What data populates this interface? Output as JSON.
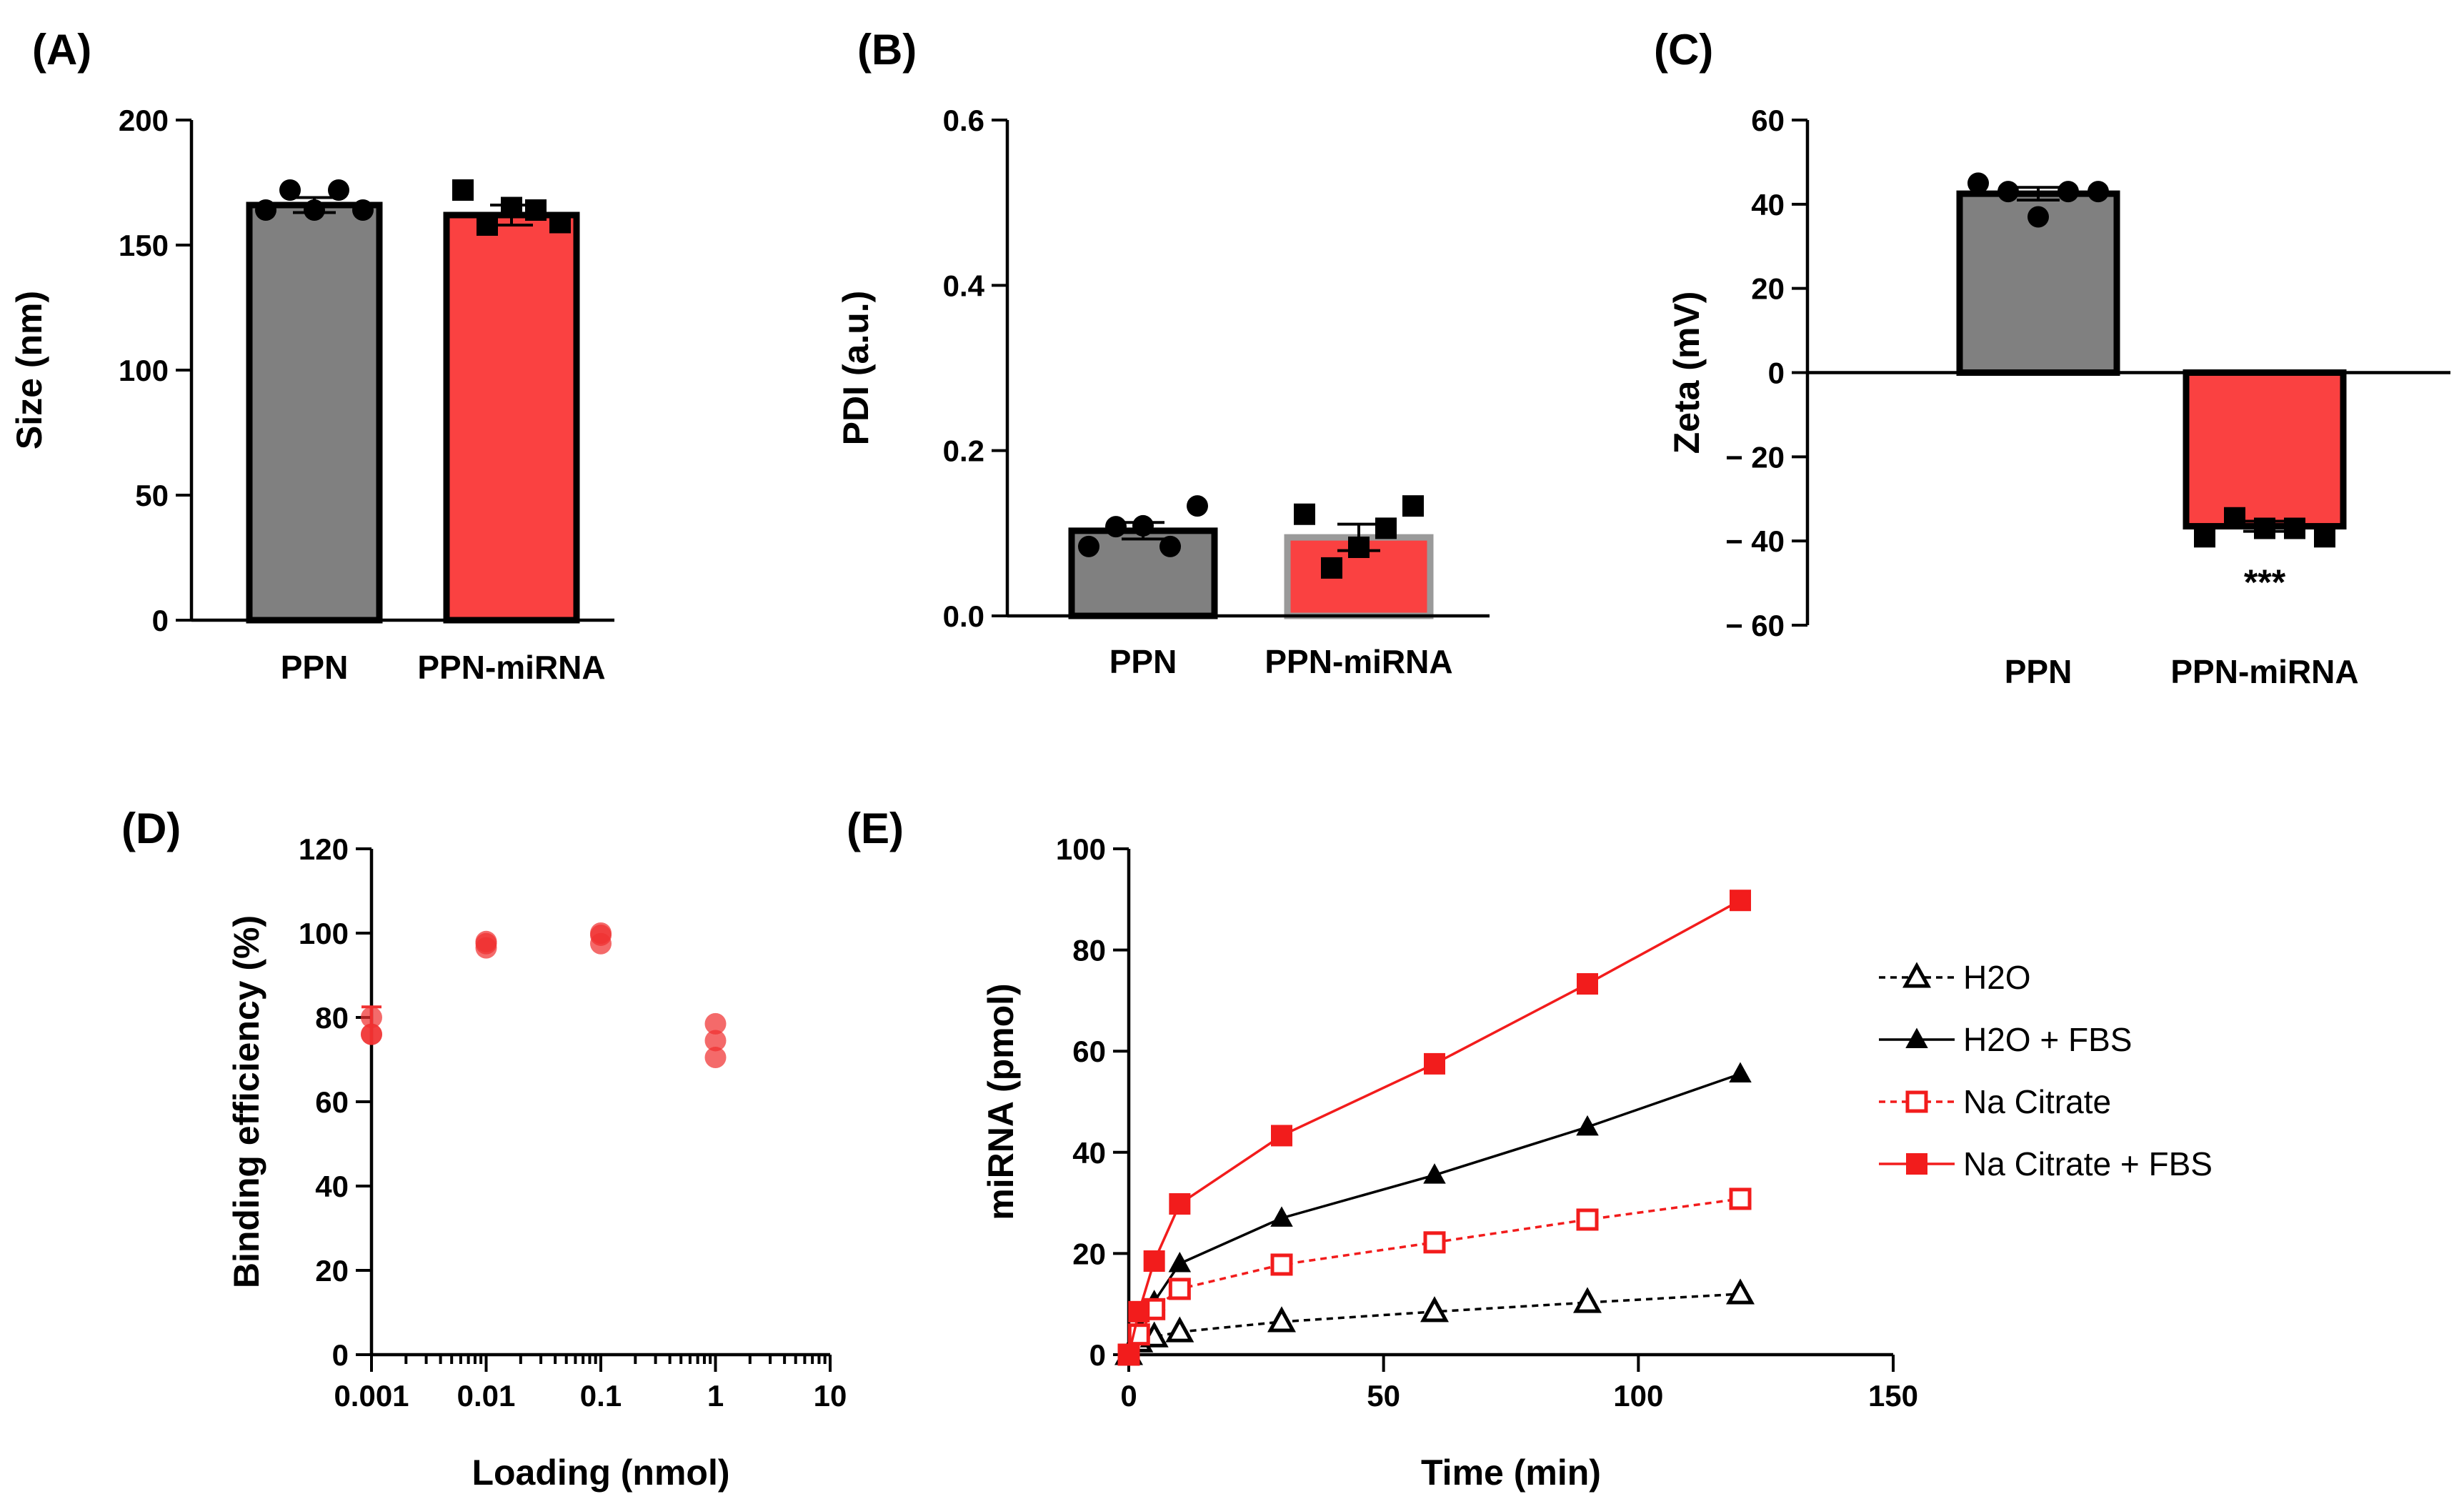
{
  "figure": {
    "panels": {
      "A": "(A)",
      "B": "(B)",
      "C": "(C)",
      "D": "(D)",
      "E": "(E)"
    }
  },
  "colors": {
    "gray_bar": "#808080",
    "red_bar": "#fa4141",
    "axis": "#000000",
    "red_line": "#f21c1c",
    "scatter_red": "#f03030"
  },
  "chart_data": [
    {
      "id": "A",
      "type": "bar",
      "title": "",
      "xlabel": "",
      "ylabel": "Size (nm)",
      "ylim": [
        0,
        200
      ],
      "yticks": [
        0,
        50,
        100,
        150,
        200
      ],
      "yticklabels": [
        "0",
        "50",
        "100",
        "150",
        "200"
      ],
      "categories": [
        "PPN",
        "PPN-miRNA"
      ],
      "values": [
        166,
        162
      ],
      "errors": [
        3,
        4
      ],
      "bar_colors": [
        "#808080",
        "#fa4141"
      ],
      "points": [
        [
          164,
          172,
          164,
          172,
          164
        ],
        [
          172,
          158,
          165,
          164,
          159
        ]
      ],
      "markers": [
        "circle",
        "square"
      ]
    },
    {
      "id": "B",
      "type": "bar",
      "title": "",
      "xlabel": "",
      "ylabel": "PDI (a.u.)",
      "ylim": [
        0,
        0.6
      ],
      "yticks": [
        0,
        0.2,
        0.4,
        0.6
      ],
      "yticklabels": [
        "0.0",
        "0.2",
        "0.4",
        "0.6"
      ],
      "categories": [
        "PPN",
        "PPN-miRNA"
      ],
      "values": [
        0.103,
        0.095
      ],
      "errors": [
        0.01,
        0.016
      ],
      "bar_colors": [
        "#808080",
        "#fa4141"
      ],
      "points": [
        [
          0.084,
          0.108,
          0.109,
          0.084,
          0.133
        ],
        [
          0.123,
          0.058,
          0.083,
          0.106,
          0.133
        ]
      ],
      "markers": [
        "circle",
        "square"
      ]
    },
    {
      "id": "C",
      "type": "bar",
      "title": "",
      "xlabel": "",
      "ylabel": "Zeta (mV)",
      "ylim": [
        -60,
        60
      ],
      "yticks": [
        -60,
        -40,
        -20,
        0,
        20,
        40,
        60
      ],
      "yticklabels": [
        "− 60",
        "− 40",
        "− 20",
        "0",
        "20",
        "40",
        "60"
      ],
      "categories": [
        "PPN",
        "PPN-miRNA"
      ],
      "values": [
        42.5,
        -36.5
      ],
      "errors": [
        1.5,
        1.2
      ],
      "bar_colors": [
        "#808080",
        "#fa4141"
      ],
      "points": [
        [
          45,
          43,
          37,
          43,
          43
        ],
        [
          -39,
          -34.5,
          -37,
          -37,
          -39
        ]
      ],
      "markers": [
        "circle",
        "square"
      ],
      "annotation": "***"
    },
    {
      "id": "D",
      "type": "scatter",
      "title": "",
      "xlabel": "Loading (nmol)",
      "ylabel": "Binding efficiency (%)",
      "xscale": "log",
      "xlim": [
        0.001,
        10
      ],
      "xticks": [
        0.001,
        0.01,
        0.1,
        1,
        10
      ],
      "xticklabels": [
        "0.001",
        "0.01",
        "0.1",
        "1",
        "10"
      ],
      "ylim": [
        0,
        120
      ],
      "yticks": [
        0,
        20,
        40,
        60,
        80,
        100,
        120
      ],
      "yticklabels": [
        "0",
        "20",
        "40",
        "60",
        "80",
        "100",
        "120"
      ],
      "x": [
        0.001,
        0.001,
        0.001,
        0.01,
        0.01,
        0.01,
        0.1,
        0.1,
        0.1,
        1,
        1,
        1
      ],
      "y": [
        80,
        76,
        76,
        97.5,
        96.5,
        98,
        99.5,
        97.5,
        100,
        78.5,
        74.5,
        70.5
      ]
    },
    {
      "id": "E",
      "type": "line",
      "title": "",
      "xlabel": "Time (min)",
      "ylabel": "miRNA (pmol)",
      "xlim": [
        0,
        150
      ],
      "xticks": [
        0,
        50,
        100,
        150
      ],
      "xticklabels": [
        "0",
        "50",
        "100",
        "150"
      ],
      "ylim": [
        0,
        100
      ],
      "yticks": [
        0,
        20,
        40,
        60,
        80,
        100
      ],
      "yticklabels": [
        "0",
        "20",
        "40",
        "60",
        "80",
        "100"
      ],
      "x": [
        0,
        2,
        5,
        10,
        30,
        60,
        90,
        120
      ],
      "legend_position": "right",
      "series": [
        {
          "name": "H2O",
          "values": [
            0,
            2.5,
            3.5,
            4.5,
            6.5,
            8.5,
            10.3,
            12
          ],
          "marker": "triangle-open",
          "color": "#000000",
          "dash": "dotted"
        },
        {
          "name": "H2O + FBS",
          "values": [
            0,
            5,
            10.5,
            18,
            27,
            35.5,
            45,
            55.5
          ],
          "marker": "triangle-filled",
          "color": "#000000",
          "dash": "solid"
        },
        {
          "name": "Na Citrate",
          "values": [
            0,
            4,
            9,
            13,
            17.8,
            22.2,
            26.7,
            30.8
          ],
          "marker": "square-open",
          "color": "#f21c1c",
          "dash": "dotted"
        },
        {
          "name": "Na Citrate + FBS",
          "values": [
            0,
            8.5,
            18.5,
            29.8,
            43.3,
            57.5,
            73.3,
            89.8
          ],
          "marker": "square-filled",
          "color": "#f21c1c",
          "dash": "solid"
        }
      ]
    }
  ]
}
